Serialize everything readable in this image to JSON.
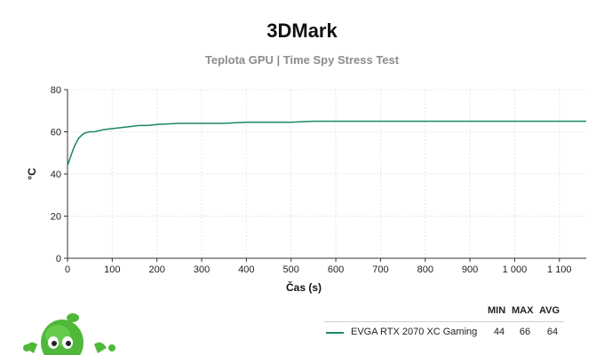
{
  "header": {
    "title": "3DMark",
    "subtitle": "Teplota GPU | Time Spy Stress Test"
  },
  "chart_data": {
    "type": "line",
    "xlabel": "Čas (s)",
    "ylabel": "°C",
    "xlim": [
      0,
      1160
    ],
    "ylim": [
      0,
      80
    ],
    "x_ticks": [
      0,
      100,
      200,
      300,
      400,
      500,
      600,
      700,
      800,
      900,
      1000,
      1100
    ],
    "x_tick_labels": [
      "0",
      "100",
      "200",
      "300",
      "400",
      "500",
      "600",
      "700",
      "800",
      "900",
      "1 000",
      "1 100"
    ],
    "y_ticks": [
      0,
      20,
      40,
      60,
      80
    ],
    "y_tick_labels": [
      "0",
      "20",
      "40",
      "60",
      "80"
    ],
    "grid": true,
    "legend_position": "bottom-right",
    "series": [
      {
        "name": "EVGA RTX 2070 XC Gaming",
        "color": "#1a8a5a",
        "x": [
          0,
          5,
          10,
          15,
          20,
          25,
          30,
          35,
          40,
          50,
          60,
          70,
          80,
          100,
          120,
          140,
          160,
          180,
          200,
          250,
          300,
          350,
          400,
          450,
          500,
          550,
          600,
          650,
          700,
          750,
          800,
          850,
          900,
          950,
          1000,
          1050,
          1100,
          1160
        ],
        "y": [
          44,
          47,
          50,
          53,
          55,
          57,
          58,
          59,
          59.5,
          60,
          60,
          60.5,
          61,
          61.5,
          62,
          62.5,
          63,
          63,
          63.5,
          64,
          64,
          64,
          64.5,
          64.5,
          64.5,
          65,
          65,
          65,
          65,
          65,
          65,
          65,
          65,
          65,
          65,
          65,
          65,
          65
        ]
      }
    ],
    "stats_headers": [
      "MIN",
      "MAX",
      "AVG"
    ],
    "stats": [
      {
        "series": "EVGA RTX 2070 XC Gaming",
        "min": "44",
        "max": "66",
        "avg": "64"
      }
    ]
  }
}
